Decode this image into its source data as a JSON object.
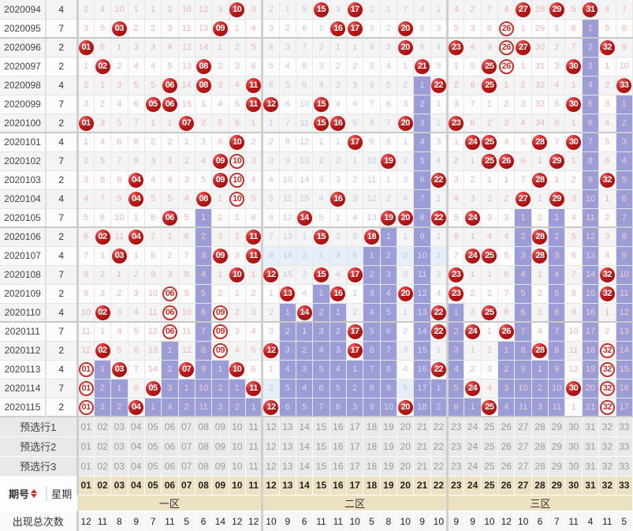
{
  "colors": {
    "ball_red": "#b81414",
    "purple": "#9c9cd6",
    "tint": "#e6eef7",
    "tan": "#ece1c1",
    "pink_text": "#efb5b5",
    "blue_text": "#bfcbe6",
    "divider": "#cfcfcf",
    "sort_red": "#c43131"
  },
  "left": {
    "period_label": "期号",
    "week_label": "星期",
    "totals_label": "出现总次数",
    "presel_labels": [
      "预选行1",
      "预选行2",
      "预选行3"
    ]
  },
  "zones": [
    {
      "label": "一区"
    },
    {
      "label": "二区"
    },
    {
      "label": "三区"
    }
  ],
  "ball_numbers": [
    "01",
    "02",
    "03",
    "04",
    "05",
    "06",
    "07",
    "08",
    "09",
    "10",
    "11",
    "12",
    "13",
    "14",
    "15",
    "16",
    "17",
    "18",
    "19",
    "20",
    "21",
    "22",
    "23",
    "24",
    "25",
    "26",
    "27",
    "28",
    "29",
    "30",
    "31",
    "32",
    "33"
  ],
  "totals": [
    "12",
    "11",
    "8",
    "9",
    "7",
    "11",
    "5",
    "6",
    "14",
    "12",
    "12",
    "10",
    "9",
    "6",
    "11",
    "11",
    "10",
    "5",
    "8",
    "10",
    "9",
    "10",
    "9",
    "9",
    "10",
    "12",
    "10",
    "6",
    "7",
    "11",
    "4",
    "11",
    "5"
  ],
  "rows": [
    {
      "p": "2020094",
      "w": "4",
      "c": [
        "2",
        "4",
        "10",
        "1",
        "1",
        "2",
        "10",
        "12",
        "3",
        "B10",
        "3",
        "2",
        "1",
        "5",
        "B15",
        "3",
        "B17",
        "2",
        "1",
        "7",
        "4",
        "2",
        "4",
        "2",
        "7",
        "4",
        "B27",
        "28",
        "B29",
        "5",
        "B31",
        "4",
        "7"
      ]
    },
    {
      "p": "2020095",
      "w": "7",
      "c": [
        "3",
        "5",
        "B03",
        "2",
        "2",
        "3",
        "11",
        "13",
        "B09",
        "1",
        "4",
        "3",
        "2",
        "6",
        "1",
        "B16",
        "B17",
        "3",
        "2",
        "B20",
        "5",
        "3",
        "5",
        "3",
        "8",
        "H26",
        "1",
        "29",
        "1",
        "6",
        "1p",
        "5",
        "8"
      ]
    },
    {
      "p": "2020096",
      "w": "2",
      "c": [
        "B01",
        "6",
        "1",
        "3",
        "3",
        "4",
        "12",
        "14",
        "1",
        "2",
        "5",
        "4",
        "3",
        "7",
        "2",
        "1",
        "1",
        "4",
        "3",
        "B20",
        "6",
        "4",
        "B23",
        "4",
        "9",
        "H26",
        "B27",
        "30",
        "2",
        "7",
        "2p",
        "B32",
        "9"
      ]
    },
    {
      "p": "2020097",
      "w": "2",
      "c": [
        "1",
        "B02",
        "2",
        "4",
        "4",
        "5",
        "13",
        "B08",
        "2",
        "3",
        "6",
        "5",
        "4",
        "8",
        "3",
        "2",
        "2",
        "5",
        "4",
        "1",
        "B21",
        "5",
        "1",
        "5",
        "B25",
        "H26",
        "1",
        "31",
        "3",
        "B30",
        "3p",
        "1",
        "10"
      ]
    },
    {
      "p": "2020098",
      "w": "4",
      "c": [
        "2",
        "1",
        "3",
        "5",
        "5",
        "B06",
        "14",
        "B08",
        "3",
        "4",
        "B11",
        "6",
        "5",
        "9",
        "4",
        "3",
        "3",
        "6",
        "5",
        "2",
        "1p",
        "B22",
        "2",
        "6",
        "B25",
        "1",
        "2",
        "32",
        "4",
        "1",
        "4p",
        "2",
        "B33"
      ]
    },
    {
      "p": "2020099",
      "w": "7",
      "c": [
        "3",
        "2",
        "4",
        "6",
        "B05",
        "B06",
        "15",
        "1",
        "4",
        "5",
        "B11",
        "B12",
        "6",
        "10",
        "B15",
        "4",
        "4",
        "7",
        "6",
        "3",
        "2p",
        "1",
        "3",
        "7",
        "1",
        "2",
        "3",
        "33",
        "5",
        "B30",
        "5p",
        "3",
        "1p"
      ]
    },
    {
      "p": "2020100",
      "w": "2",
      "c": [
        "B01",
        "3",
        "5",
        "7",
        "1",
        "1",
        "B07",
        "2",
        "5",
        "6",
        "1",
        "1",
        "7",
        "11",
        "B15",
        "B16",
        "5",
        "8",
        "7",
        "B20",
        "3p",
        "2",
        "B23",
        "8",
        "2",
        "3",
        "4",
        "34",
        "6",
        "1",
        "6p",
        "4",
        "2p"
      ]
    },
    {
      "p": "2020101",
      "w": "4",
      "c": [
        "1",
        "4",
        "6",
        "8",
        "2",
        "2",
        "1",
        "3",
        "6",
        "B10",
        "2",
        "2",
        "8",
        "12",
        "1",
        "1",
        "B17",
        "9",
        "8",
        "1",
        "4p",
        "3",
        "1",
        "B24",
        "B25",
        "4",
        "5",
        "B28",
        "7",
        "B30",
        "7p",
        "5",
        "3p"
      ]
    },
    {
      "p": "2020102",
      "w": "7",
      "c": [
        "2",
        "5",
        "7",
        "9",
        "3",
        "3",
        "2",
        "4",
        "B09",
        "H10",
        "3",
        "3",
        "9",
        "13",
        "2",
        "2",
        "1",
        "10",
        "B19",
        "2",
        "5p",
        "4",
        "2",
        "1",
        "B25",
        "B26",
        "6",
        "1",
        "B29",
        "1",
        "8p",
        "6",
        "4p"
      ]
    },
    {
      "p": "2020103",
      "w": "2",
      "c": [
        "3",
        "6",
        "8",
        "B04",
        "4",
        "4",
        "3",
        "5",
        "B09",
        "H10",
        "4",
        "4",
        "10",
        "14",
        "3",
        "3",
        "2",
        "11",
        "1",
        "3",
        "6p",
        "B22",
        "3",
        "2",
        "1",
        "1",
        "7",
        "B28",
        "1",
        "2",
        "9p",
        "B32",
        "5p"
      ]
    },
    {
      "p": "2020104",
      "w": "4",
      "c": [
        "4",
        "7",
        "9",
        "B04",
        "5",
        "5",
        "4",
        "B08",
        "1",
        "H10",
        "5",
        "5",
        "11",
        "15",
        "4",
        "B16",
        "3",
        "12",
        "2",
        "4",
        "7p",
        "1",
        "4",
        "3",
        "2",
        "2",
        "B27",
        "1",
        "B29",
        "3",
        "10p",
        "1",
        "6p"
      ]
    },
    {
      "p": "2020105",
      "w": "7",
      "c": [
        "5",
        "8",
        "10",
        "1",
        "6",
        "B06",
        "5",
        "1p",
        "2",
        "1",
        "6",
        "6",
        "12",
        "B14",
        "5",
        "1",
        "4",
        "13",
        "B19",
        "B20",
        "8p",
        "B22",
        "5",
        "B24",
        "3",
        "3",
        "1p",
        "2",
        "1p",
        "4",
        "11p",
        "2",
        "7p"
      ]
    },
    {
      "p": "2020106",
      "w": "2",
      "c": [
        "6",
        "B02",
        "11",
        "B04",
        "7",
        "1",
        "6",
        "2p",
        "3",
        "2",
        "B11",
        "7",
        "13",
        "1",
        "B15",
        "2",
        "5",
        "B18",
        "1p",
        "1",
        "9p",
        "1",
        "6",
        "1",
        "4",
        "4",
        "2p",
        "B28",
        "2p",
        "5",
        "12p",
        "3",
        "8p"
      ]
    },
    {
      "p": "2020107",
      "w": "4",
      "c": [
        "7",
        "1",
        "B03",
        "1",
        "8",
        "2",
        "7",
        "3p",
        "B09",
        "3",
        "B11",
        "8t",
        "14t",
        "2t",
        "1t",
        "3t",
        "6t",
        "1p",
        "2p",
        "2t",
        "10p",
        "2t",
        "7",
        "B24",
        "B25",
        "5",
        "3p",
        "B28",
        "3p",
        "6",
        "13p",
        "4",
        "9p"
      ]
    },
    {
      "p": "2020108",
      "w": "7",
      "c": [
        "8",
        "2",
        "1",
        "2",
        "9",
        "3",
        "8",
        "4p",
        "1",
        "B10",
        "1",
        "B12",
        "15",
        "3",
        "B15",
        "4",
        "B17",
        "2p",
        "3p",
        "3",
        "11p",
        "3",
        "B23",
        "1",
        "1",
        "6",
        "4p",
        "1",
        "4p",
        "7",
        "14p",
        "B32",
        "10p"
      ]
    },
    {
      "p": "2020109",
      "w": "2",
      "c": [
        "9",
        "3",
        "2",
        "3",
        "10",
        "H06",
        "9",
        "5p",
        "2",
        "1",
        "2",
        "1",
        "B13",
        "4",
        "1p",
        "B16",
        "1",
        "3p",
        "4p",
        "B20",
        "12p",
        "4",
        "B23",
        "2",
        "2",
        "7",
        "5p",
        "2",
        "5p",
        "8",
        "15p",
        "B32",
        "11p"
      ]
    },
    {
      "p": "2020110",
      "w": "4",
      "c": [
        "10",
        "B02",
        "3",
        "4",
        "11",
        "H06",
        "10",
        "6p",
        "H09",
        "2",
        "3",
        "2",
        "1p",
        "B14",
        "2p",
        "1p",
        "2",
        "4p",
        "5p",
        "1",
        "13p",
        "B22",
        "1p",
        "3",
        "B25",
        "8",
        "6p",
        "3",
        "6p",
        "9",
        "16p",
        "1",
        "12p"
      ]
    },
    {
      "p": "2020111",
      "w": "7",
      "c": [
        "11",
        "1",
        "4",
        "5",
        "12",
        "H06",
        "11",
        "7p",
        "H09",
        "3",
        "4",
        "3",
        "2p",
        "1p",
        "3p",
        "2p",
        "B17",
        "5p",
        "6p",
        "2",
        "14p",
        "B22",
        "2p",
        "B24",
        "1",
        "B26",
        "7p",
        "4",
        "7p",
        "10",
        "17p",
        "2",
        "13p"
      ]
    },
    {
      "p": "2020112",
      "w": "2",
      "c": [
        "12",
        "B02",
        "5",
        "6",
        "13",
        "1p",
        "12",
        "8p",
        "H09",
        "4",
        "5",
        "B12",
        "3p",
        "2p",
        "4p",
        "3p",
        "B17",
        "6p",
        "7p",
        "3",
        "15p",
        "1",
        "3p",
        "1",
        "2",
        "1p",
        "8p",
        "B28",
        "8p",
        "11",
        "18p",
        "H32",
        "14p"
      ]
    },
    {
      "p": "2020113",
      "w": "4",
      "c": [
        "H01",
        "1p",
        "B03",
        "7",
        "14",
        "2p",
        "B07",
        "9p",
        "1p",
        "B10",
        "6",
        "1",
        "4p",
        "3p",
        "5p",
        "4p",
        "1p",
        "7p",
        "8p",
        "4",
        "16p",
        "B22",
        "4p",
        "2",
        "3",
        "2p",
        "9p",
        "1p",
        "9p",
        "12",
        "19p",
        "H32",
        "15p"
      ]
    },
    {
      "p": "2020114",
      "w": "7",
      "c": [
        "H01",
        "2p",
        "1p",
        "8",
        "B05",
        "3p",
        "1p",
        "10p",
        "2p",
        "1p",
        "B11",
        "2t",
        "5p",
        "4p",
        "6p",
        "5p",
        "2p",
        "8p",
        "9p",
        "5t",
        "17p",
        "1p",
        "5p",
        "B24",
        "4",
        "3p",
        "10p",
        "2p",
        "10p",
        "B30",
        "20p",
        "H32",
        "16p"
      ]
    },
    {
      "p": "2020115",
      "w": "2",
      "c": [
        "H01",
        "3p",
        "2p",
        "B04",
        "1p",
        "4p",
        "2p",
        "11p",
        "3p",
        "2p",
        "1p",
        "B12",
        "6p",
        "5p",
        "7p",
        "6p",
        "3p",
        "9p",
        "10p",
        "B20",
        "18p",
        "2p",
        "6p",
        "1p",
        "B25",
        "4p",
        "11p",
        "3p",
        "11p",
        "1",
        "21p",
        "H32",
        "17p"
      ]
    }
  ],
  "group_separator_after": [
    "2020095",
    "2020100",
    "2020105",
    "2020110"
  ]
}
